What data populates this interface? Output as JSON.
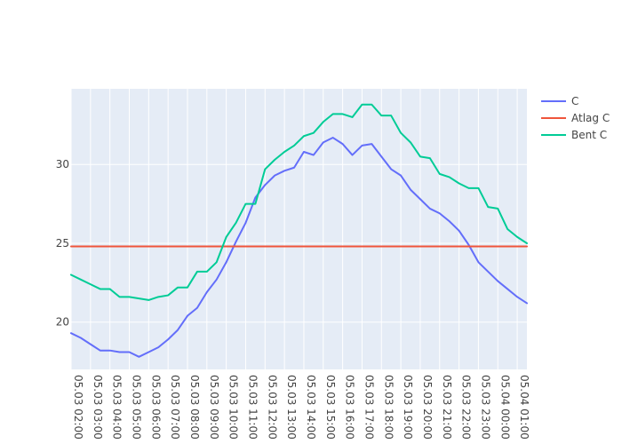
{
  "chart_data": {
    "type": "line",
    "x": [
      "05.03 02:00",
      "05.03 02:30",
      "05.03 03:00",
      "05.03 03:30",
      "05.03 04:00",
      "05.03 04:30",
      "05.03 05:00",
      "05.03 05:30",
      "05.03 06:00",
      "05.03 06:30",
      "05.03 07:00",
      "05.03 07:30",
      "05.03 08:00",
      "05.03 08:30",
      "05.03 09:00",
      "05.03 09:30",
      "05.03 10:00",
      "05.03 10:30",
      "05.03 11:00",
      "05.03 11:30",
      "05.03 12:00",
      "05.03 12:30",
      "05.03 13:00",
      "05.03 13:30",
      "05.03 14:00",
      "05.03 14:30",
      "05.03 15:00",
      "05.03 15:30",
      "05.03 16:00",
      "05.03 16:30",
      "05.03 17:00",
      "05.03 17:30",
      "05.03 18:00",
      "05.03 18:30",
      "05.03 19:00",
      "05.03 19:30",
      "05.03 20:00",
      "05.03 20:30",
      "05.03 21:00",
      "05.03 21:30",
      "05.03 22:00",
      "05.03 22:30",
      "05.03 23:00",
      "05.03 23:30",
      "05.04 00:00",
      "05.04 00:30",
      "05.04 01:00",
      "05.04 01:30"
    ],
    "x_tick_labels": [
      "05.03 02:00",
      "05.03 03:00",
      "05.03 04:00",
      "05.03 05:00",
      "05.03 06:00",
      "05.03 07:00",
      "05.03 08:00",
      "05.03 09:00",
      "05.03 10:00",
      "05.03 11:00",
      "05.03 12:00",
      "05.03 13:00",
      "05.03 14:00",
      "05.03 15:00",
      "05.03 16:00",
      "05.03 17:00",
      "05.03 18:00",
      "05.03 19:00",
      "05.03 20:00",
      "05.03 21:00",
      "05.03 22:00",
      "05.03 23:00",
      "05.04 00:00",
      "05.04 01:00"
    ],
    "y_ticks": [
      20,
      25,
      30
    ],
    "ylim": [
      17,
      34.8
    ],
    "grid": true,
    "legend_position": "top-right",
    "series": [
      {
        "name": "C",
        "color": "#636efa",
        "values": [
          19.3,
          19.0,
          18.6,
          18.2,
          18.2,
          18.1,
          18.1,
          17.8,
          18.1,
          18.4,
          18.9,
          19.5,
          20.4,
          20.9,
          21.9,
          22.7,
          23.8,
          25.1,
          26.3,
          27.9,
          28.7,
          29.3,
          29.6,
          29.8,
          30.8,
          30.6,
          31.4,
          31.7,
          31.3,
          30.6,
          31.2,
          31.3,
          30.5,
          29.7,
          29.3,
          28.4,
          27.8,
          27.2,
          26.9,
          26.4,
          25.8,
          24.9,
          23.8,
          23.2,
          22.6,
          22.1,
          21.6,
          21.2
        ]
      },
      {
        "name": "Atlag C",
        "color": "#ef553b",
        "values": [
          24.8,
          24.8,
          24.8,
          24.8,
          24.8,
          24.8,
          24.8,
          24.8,
          24.8,
          24.8,
          24.8,
          24.8,
          24.8,
          24.8,
          24.8,
          24.8,
          24.8,
          24.8,
          24.8,
          24.8,
          24.8,
          24.8,
          24.8,
          24.8,
          24.8,
          24.8,
          24.8,
          24.8,
          24.8,
          24.8,
          24.8,
          24.8,
          24.8,
          24.8,
          24.8,
          24.8,
          24.8,
          24.8,
          24.8,
          24.8,
          24.8,
          24.8,
          24.8,
          24.8,
          24.8,
          24.8,
          24.8,
          24.8
        ]
      },
      {
        "name": "Bent C",
        "color": "#00cc96",
        "values": [
          23.0,
          22.7,
          22.4,
          22.1,
          22.1,
          21.6,
          21.6,
          21.5,
          21.4,
          21.6,
          21.7,
          22.2,
          22.2,
          23.2,
          23.2,
          23.8,
          25.4,
          26.3,
          27.5,
          27.5,
          29.7,
          30.3,
          30.8,
          31.2,
          31.8,
          32.0,
          32.7,
          33.2,
          33.2,
          33.0,
          33.8,
          33.8,
          33.1,
          33.1,
          32.0,
          31.4,
          30.5,
          30.4,
          29.4,
          29.2,
          28.8,
          28.5,
          28.5,
          27.3,
          27.2,
          25.9,
          25.4,
          25.0
        ]
      }
    ]
  }
}
